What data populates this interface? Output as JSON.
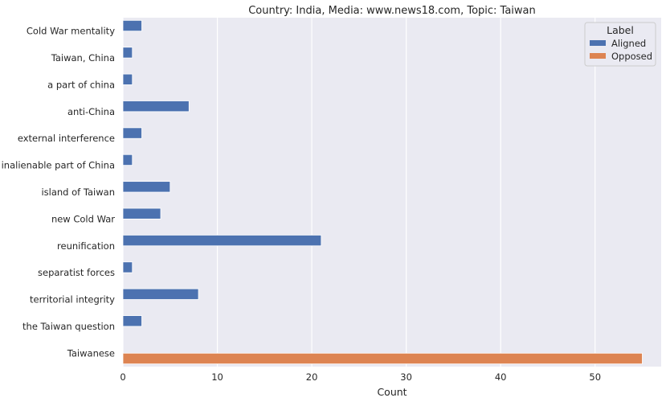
{
  "chart_data": {
    "type": "bar",
    "orientation": "horizontal",
    "title": "Country: India, Media: www.news18.com, Topic: Taiwan",
    "xlabel": "Count",
    "ylabel": "",
    "xlim": [
      0,
      57
    ],
    "xticks": [
      0,
      10,
      20,
      30,
      40,
      50
    ],
    "grid": true,
    "legend": {
      "title": "Label",
      "position": "top-right"
    },
    "series": [
      {
        "name": "Aligned",
        "color": "#4c72b0"
      },
      {
        "name": "Opposed",
        "color": "#dd8452"
      }
    ],
    "categories": [
      "Cold War mentality",
      "Taiwan, China",
      "a part of china",
      "anti-China",
      "external interference",
      "inalienable part of China",
      "island of Taiwan",
      "new Cold War",
      "reunification",
      "separatist forces",
      "territorial integrity",
      "the Taiwan question",
      "Taiwanese"
    ],
    "values": [
      {
        "category": "Cold War mentality",
        "series": "Aligned",
        "value": 2
      },
      {
        "category": "Taiwan, China",
        "series": "Aligned",
        "value": 1
      },
      {
        "category": "a part of china",
        "series": "Aligned",
        "value": 1
      },
      {
        "category": "anti-China",
        "series": "Aligned",
        "value": 7
      },
      {
        "category": "external interference",
        "series": "Aligned",
        "value": 2
      },
      {
        "category": "inalienable part of China",
        "series": "Aligned",
        "value": 1
      },
      {
        "category": "island of Taiwan",
        "series": "Aligned",
        "value": 5
      },
      {
        "category": "new Cold War",
        "series": "Aligned",
        "value": 4
      },
      {
        "category": "reunification",
        "series": "Aligned",
        "value": 21
      },
      {
        "category": "separatist forces",
        "series": "Aligned",
        "value": 1
      },
      {
        "category": "territorial integrity",
        "series": "Aligned",
        "value": 8
      },
      {
        "category": "the Taiwan question",
        "series": "Aligned",
        "value": 2
      },
      {
        "category": "Taiwanese",
        "series": "Opposed",
        "value": 55
      }
    ]
  }
}
